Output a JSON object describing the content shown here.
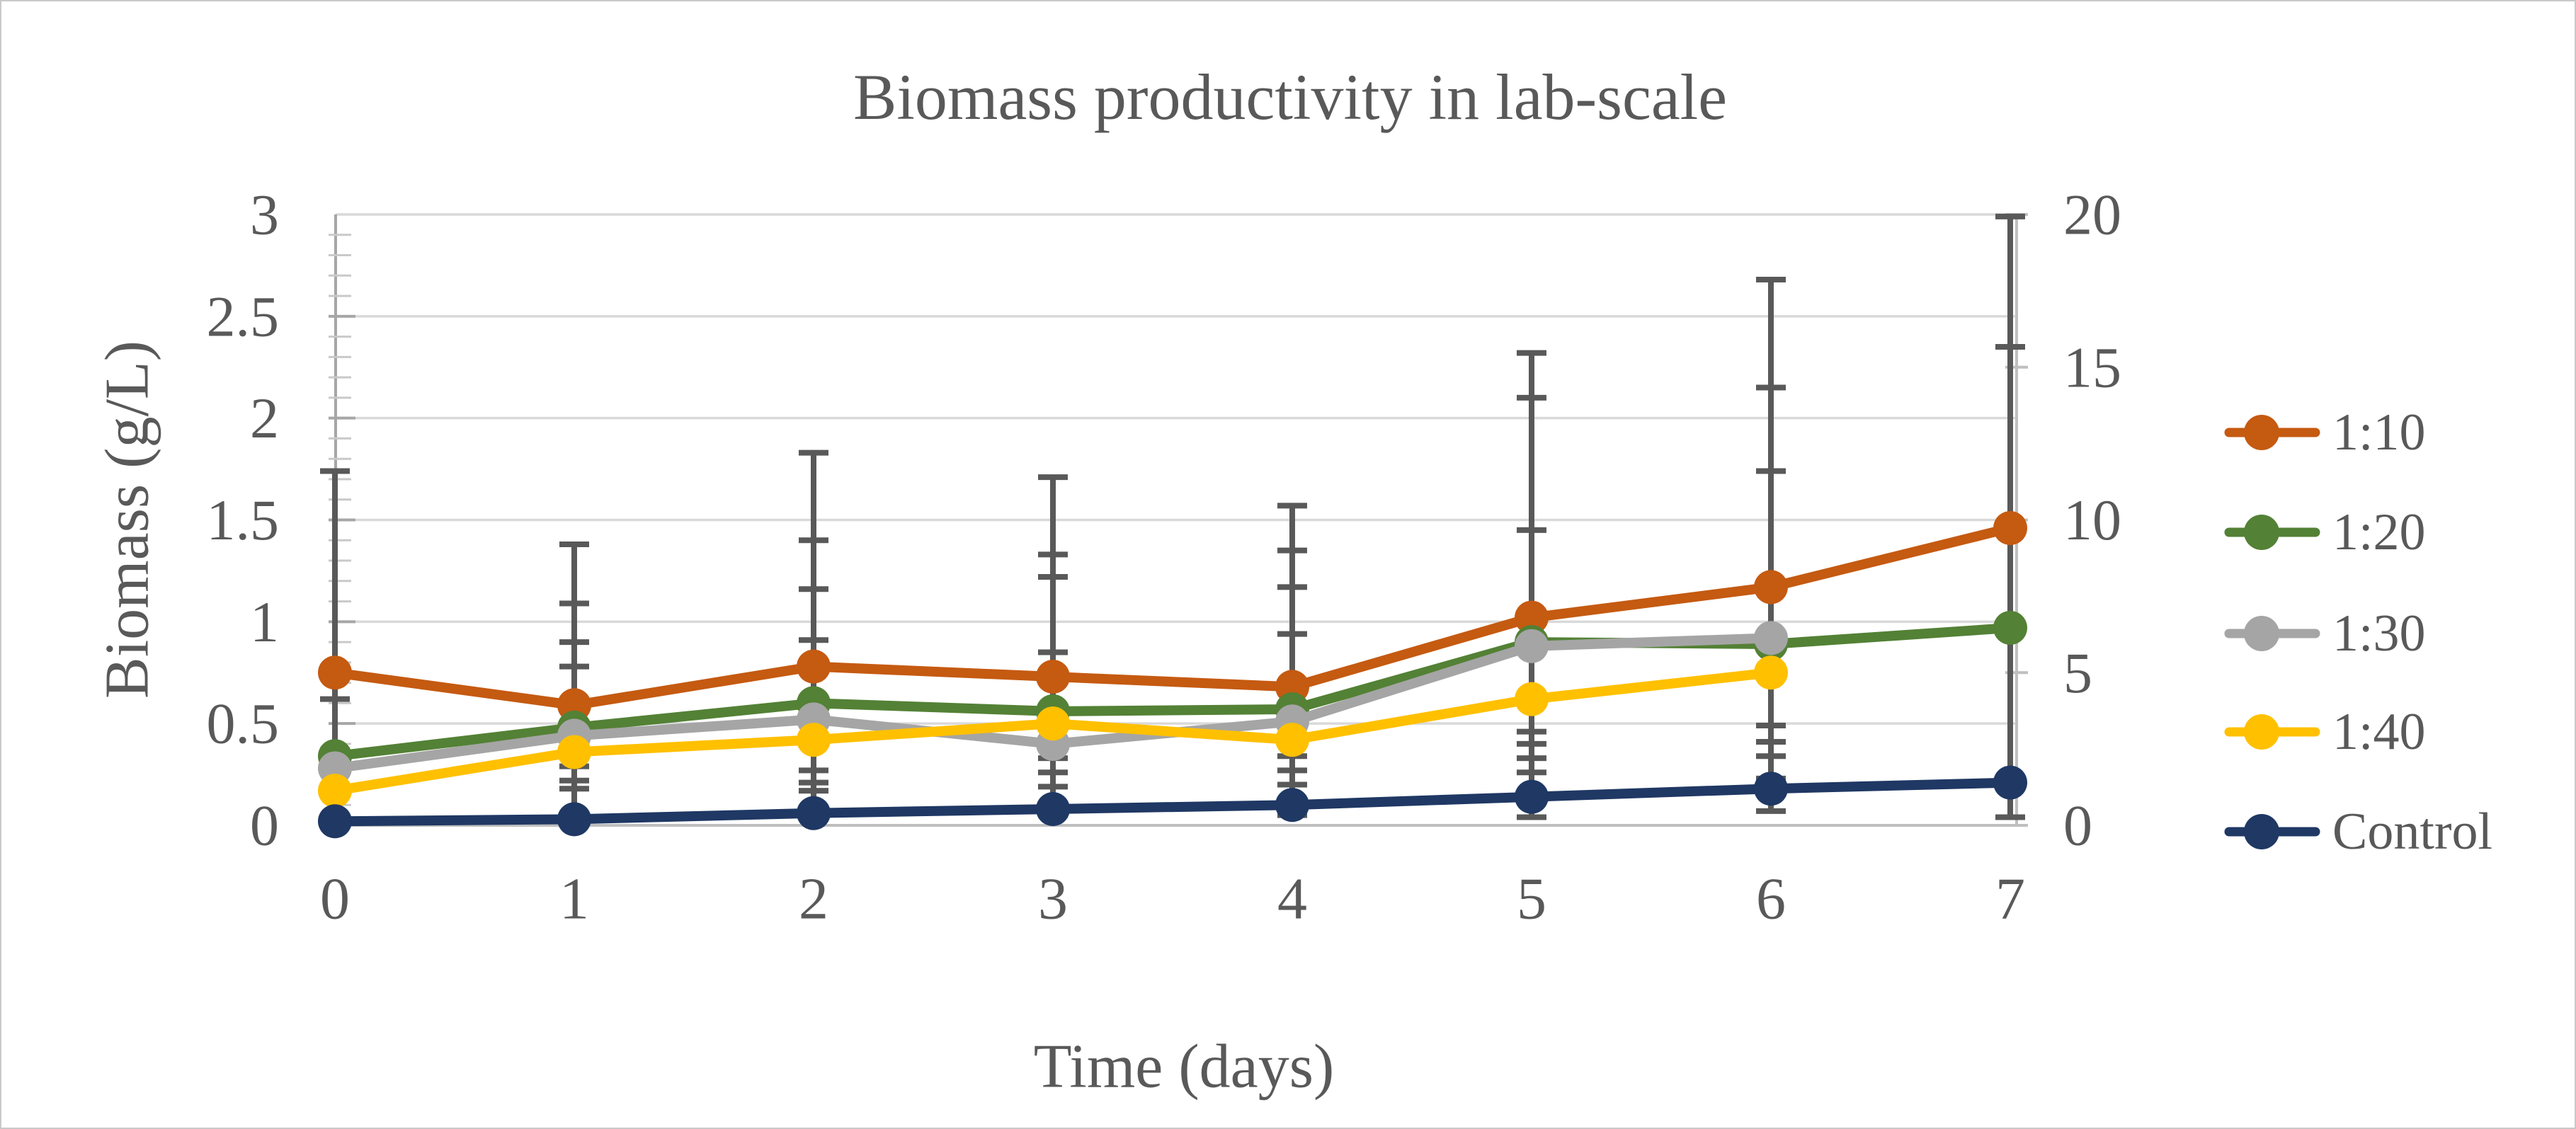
{
  "chart_data": {
    "type": "line",
    "title": "Biomass productivity in lab-scale",
    "xlabel": "Time (days)",
    "ylabel_left": "Biomass (g/L)",
    "x": [
      0,
      1,
      2,
      3,
      4,
      5,
      6,
      7
    ],
    "x_ticks": [
      "0",
      "1",
      "2",
      "3",
      "4",
      "5",
      "6",
      "7"
    ],
    "y_left_ticks": [
      "3",
      "2.5",
      "2",
      "1.5",
      "1",
      "0.5",
      "0"
    ],
    "y_right_ticks": [
      "20",
      "15",
      "10",
      "5",
      "0"
    ],
    "ylim_left": [
      0,
      3
    ],
    "ylim_right": [
      0,
      20
    ],
    "grid": "horizontal",
    "legend_position": "right",
    "series": [
      {
        "name": "1:10",
        "color": "#C55A11",
        "values": [
          0.75,
          0.59,
          0.78,
          0.73,
          0.68,
          1.02,
          1.17,
          1.46
        ]
      },
      {
        "name": "1:20",
        "color": "#538135",
        "values": [
          0.34,
          0.48,
          0.6,
          0.56,
          0.57,
          0.9,
          0.89,
          0.97
        ]
      },
      {
        "name": "1:30",
        "color": "#A5A5A5",
        "values": [
          0.28,
          0.44,
          0.52,
          0.4,
          0.51,
          0.88,
          0.92,
          null
        ]
      },
      {
        "name": "1:40",
        "color": "#FFC000",
        "values": [
          0.17,
          0.36,
          0.42,
          0.5,
          0.42,
          0.62,
          0.75,
          null
        ]
      },
      {
        "name": "Control",
        "color": "#1F3864",
        "values": [
          0.02,
          0.03,
          0.06,
          0.08,
          0.1,
          0.14,
          0.18,
          0.21
        ]
      }
    ],
    "error_bars": [
      {
        "day": 0,
        "tops": [
          1.74,
          0.62
        ],
        "bottoms": [
          0.37,
          0.04
        ]
      },
      {
        "day": 1,
        "tops": [
          1.38,
          1.09,
          0.9,
          0.78
        ],
        "bottoms": [
          0.29,
          0.22,
          0.18,
          0.04
        ]
      },
      {
        "day": 2,
        "tops": [
          1.83,
          1.4,
          1.16,
          0.91
        ],
        "bottoms": [
          0.27,
          0.21,
          0.17,
          0.05
        ]
      },
      {
        "day": 3,
        "tops": [
          1.71,
          1.33,
          1.22,
          0.85
        ],
        "bottoms": [
          0.33,
          0.26,
          0.19,
          0.05
        ]
      },
      {
        "day": 4,
        "tops": [
          1.57,
          1.35,
          1.17,
          0.94
        ],
        "bottoms": [
          0.34,
          0.27,
          0.2,
          0.05
        ]
      },
      {
        "day": 5,
        "tops": [
          2.32,
          2.1,
          1.45
        ],
        "bottoms": [
          0.46,
          0.4,
          0.33,
          0.26,
          0.04
        ]
      },
      {
        "day": 6,
        "tops": [
          2.68,
          2.15,
          1.74
        ],
        "bottoms": [
          0.49,
          0.41,
          0.34,
          0.23,
          0.07
        ]
      },
      {
        "day": 7,
        "tops": [
          2.99,
          2.35
        ],
        "bottoms": [
          0.04
        ]
      }
    ],
    "legend_entries": [
      "1:10",
      "1:20",
      "1:30",
      "1:40",
      "Control"
    ]
  },
  "style_colors": {
    "text": "#595959",
    "gridline": "#D9D9D9",
    "axis_line": "#BFBFBF",
    "left_spine": "#A6A6A6",
    "minor_tick": "#C9C9C9",
    "error_bar": "#595959",
    "background": "#FFFFFF",
    "frame_border": "#C9C9C9"
  }
}
